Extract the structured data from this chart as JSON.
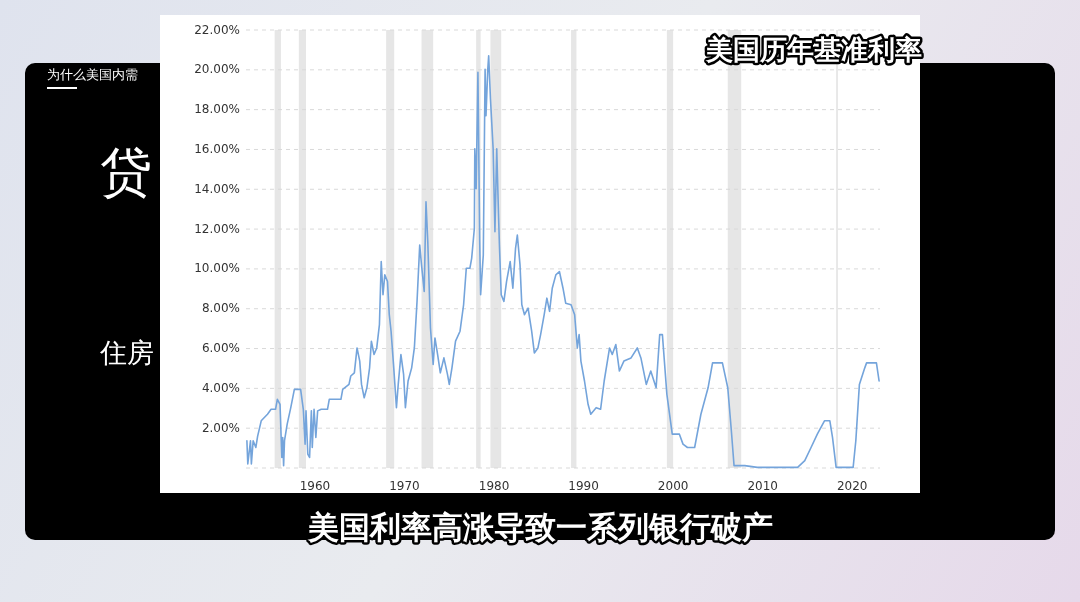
{
  "chart_data": {
    "type": "line",
    "title": "美国历年基准利率",
    "subtitle": "美国利率高涨导致一系列银行破产",
    "annotations": [
      "为什么美国内需",
      "贷",
      "住房"
    ],
    "xlim": [
      1952.3,
      2023.1
    ],
    "ylim": [
      0,
      22
    ],
    "xticks": [
      1960,
      1970,
      1980,
      1990,
      2000,
      2010,
      2020
    ],
    "yticks": [
      {
        "value": 0,
        "label": null
      },
      {
        "value": 2,
        "label": "2.00%"
      },
      {
        "value": 4,
        "label": "4.00%"
      },
      {
        "value": 6,
        "label": "6.00%"
      },
      {
        "value": 8,
        "label": "8.00%"
      },
      {
        "value": 10,
        "label": "10.00%"
      },
      {
        "value": 12,
        "label": "12.00%"
      },
      {
        "value": 14,
        "label": "14.00%"
      },
      {
        "value": 16,
        "label": "16.00%"
      },
      {
        "value": 18,
        "label": "18.00%"
      },
      {
        "value": 20,
        "label": "20.00%"
      },
      {
        "value": 22,
        "label": "22.00%"
      }
    ],
    "grid": "y",
    "bands": [
      {
        "axis": "x",
        "from": 1955.5,
        "to": 1956.2,
        "color": "#e6e6e6"
      },
      {
        "axis": "x",
        "from": 1958.2,
        "to": 1959.0,
        "color": "#e6e6e6"
      },
      {
        "axis": "x",
        "from": 1967.95,
        "to": 1968.85,
        "color": "#e6e6e6"
      },
      {
        "axis": "x",
        "from": 1971.9,
        "to": 1973.2,
        "color": "#e6e6e6"
      },
      {
        "axis": "x",
        "from": 1978.0,
        "to": 1978.5,
        "color": "#e6e6e6"
      },
      {
        "axis": "x",
        "from": 1979.6,
        "to": 1980.8,
        "color": "#e6e6e6"
      },
      {
        "axis": "x",
        "from": 1988.6,
        "to": 1989.2,
        "color": "#e6e6e6"
      },
      {
        "axis": "x",
        "from": 1999.3,
        "to": 2000.0,
        "color": "#e6e6e6"
      },
      {
        "axis": "x",
        "from": 2006.1,
        "to": 2007.6,
        "color": "#e6e6e6"
      },
      {
        "axis": "x",
        "from": 2018.2,
        "to": 2018.4,
        "color": "#e6e6e6"
      }
    ],
    "series": [
      {
        "color": "#74a4db",
        "x": [
          1952.4,
          1952.5,
          1952.8,
          1952.9,
          1953.1,
          1953.4,
          1953.6,
          1954.0,
          1954.7,
          1955.1,
          1955.6,
          1955.8,
          1956.1,
          1956.3,
          1956.4,
          1956.5,
          1956.6,
          1956.9,
          1957.3,
          1957.7,
          1958.4,
          1958.7,
          1958.9,
          1959.0,
          1959.2,
          1959.4,
          1959.6,
          1959.7,
          1959.9,
          1960.1,
          1960.3,
          1960.7,
          1961.4,
          1961.6,
          1962.9,
          1963.1,
          1963.8,
          1964.0,
          1964.4,
          1964.7,
          1965.0,
          1965.2,
          1965.5,
          1965.8,
          1966.1,
          1966.3,
          1966.6,
          1966.9,
          1967.2,
          1967.4,
          1967.6,
          1967.8,
          1968.1,
          1968.3,
          1968.5,
          1968.8,
          1969.1,
          1969.3,
          1969.6,
          1969.9,
          1970.1,
          1970.4,
          1970.8,
          1971.1,
          1971.4,
          1971.7,
          1971.9,
          1972.2,
          1972.4,
          1972.6,
          1972.9,
          1973.2,
          1973.4,
          1973.7,
          1974.0,
          1974.4,
          1974.8,
          1975.0,
          1975.3,
          1975.7,
          1976.2,
          1976.6,
          1976.9,
          1977.3,
          1977.5,
          1977.8,
          1977.85,
          1978.0,
          1978.2,
          1978.4,
          1978.5,
          1978.8,
          1979.0,
          1979.1,
          1979.3,
          1979.4,
          1979.6,
          1979.9,
          1980.1,
          1980.3,
          1980.5,
          1980.6,
          1980.8,
          1981.1,
          1981.4,
          1981.8,
          1982.1,
          1982.4,
          1982.6,
          1982.9,
          1983.1,
          1983.4,
          1983.8,
          1984.2,
          1984.5,
          1984.9,
          1985.2,
          1985.6,
          1985.9,
          1986.2,
          1986.5,
          1986.9,
          1987.3,
          1987.7,
          1988.0,
          1988.6,
          1989.0,
          1989.3,
          1989.5,
          1989.7,
          1990.1,
          1990.5,
          1990.8,
          1991.4,
          1991.9,
          1992.3,
          1992.9,
          1993.2,
          1993.6,
          1994.0,
          1994.5,
          1995.3,
          1996.0,
          1996.4,
          1997.0,
          1997.5,
          1998.1,
          1998.5,
          1998.8,
          1999.3,
          1999.9,
          2000.7,
          2001.1,
          2001.6,
          2002.4,
          2003.1,
          2003.9,
          2004.4,
          2005.5,
          2006.1,
          2006.5,
          2006.8,
          2008.0,
          2009.4,
          2013.9,
          2014.7,
          2015.4,
          2016.1,
          2016.9,
          2017.5,
          2017.8,
          2018.2,
          2020.1,
          2020.4,
          2020.8,
          2021.4,
          2021.6,
          2022.7,
          2023.0
        ],
        "values": [
          1.37,
          0.2,
          1.37,
          0.2,
          1.37,
          1.03,
          1.6,
          2.37,
          2.7,
          2.95,
          2.95,
          3.45,
          3.2,
          0.53,
          1.53,
          0.12,
          1.37,
          2.2,
          3.03,
          3.95,
          3.95,
          2.95,
          1.2,
          2.87,
          0.7,
          0.53,
          2.87,
          1.03,
          2.95,
          1.53,
          2.87,
          2.95,
          2.95,
          3.45,
          3.45,
          3.95,
          4.2,
          4.62,
          4.78,
          6.03,
          5.37,
          4.2,
          3.53,
          4.03,
          5.03,
          6.37,
          5.7,
          6.03,
          7.2,
          10.37,
          8.7,
          9.7,
          9.37,
          7.7,
          6.87,
          5.03,
          3.03,
          4.2,
          5.7,
          4.7,
          3.03,
          4.37,
          5.03,
          6.03,
          8.37,
          11.2,
          10.2,
          8.87,
          13.37,
          11.37,
          7.03,
          5.2,
          6.53,
          5.7,
          4.78,
          5.53,
          4.7,
          4.2,
          5.03,
          6.37,
          6.87,
          8.2,
          10.03,
          10.03,
          10.53,
          12.03,
          16.03,
          14.03,
          19.87,
          11.37,
          8.7,
          10.7,
          20.03,
          17.7,
          20.03,
          20.7,
          18.53,
          16.03,
          11.87,
          16.03,
          12.7,
          11.2,
          8.7,
          8.37,
          9.37,
          10.37,
          9.03,
          11.03,
          11.7,
          10.2,
          8.2,
          7.7,
          8.03,
          6.87,
          5.78,
          6.03,
          6.7,
          7.7,
          8.53,
          7.87,
          9.03,
          9.7,
          9.87,
          9.03,
          8.28,
          8.2,
          7.7,
          6.03,
          6.7,
          5.37,
          4.37,
          3.2,
          2.7,
          3.03,
          2.95,
          4.37,
          6.03,
          5.7,
          6.2,
          4.87,
          5.37,
          5.53,
          6.03,
          5.53,
          4.2,
          4.87,
          4.03,
          6.7,
          6.7,
          3.7,
          1.7,
          1.7,
          1.2,
          1.03,
          1.03,
          2.7,
          4.03,
          5.28,
          5.28,
          4.03,
          1.87,
          0.12,
          0.12,
          0.03,
          0.03,
          0.37,
          1.03,
          1.7,
          2.37,
          2.37,
          1.53,
          0.03,
          0.03,
          1.37,
          4.2,
          5.03,
          5.28,
          5.28,
          4.37
        ]
      }
    ]
  }
}
